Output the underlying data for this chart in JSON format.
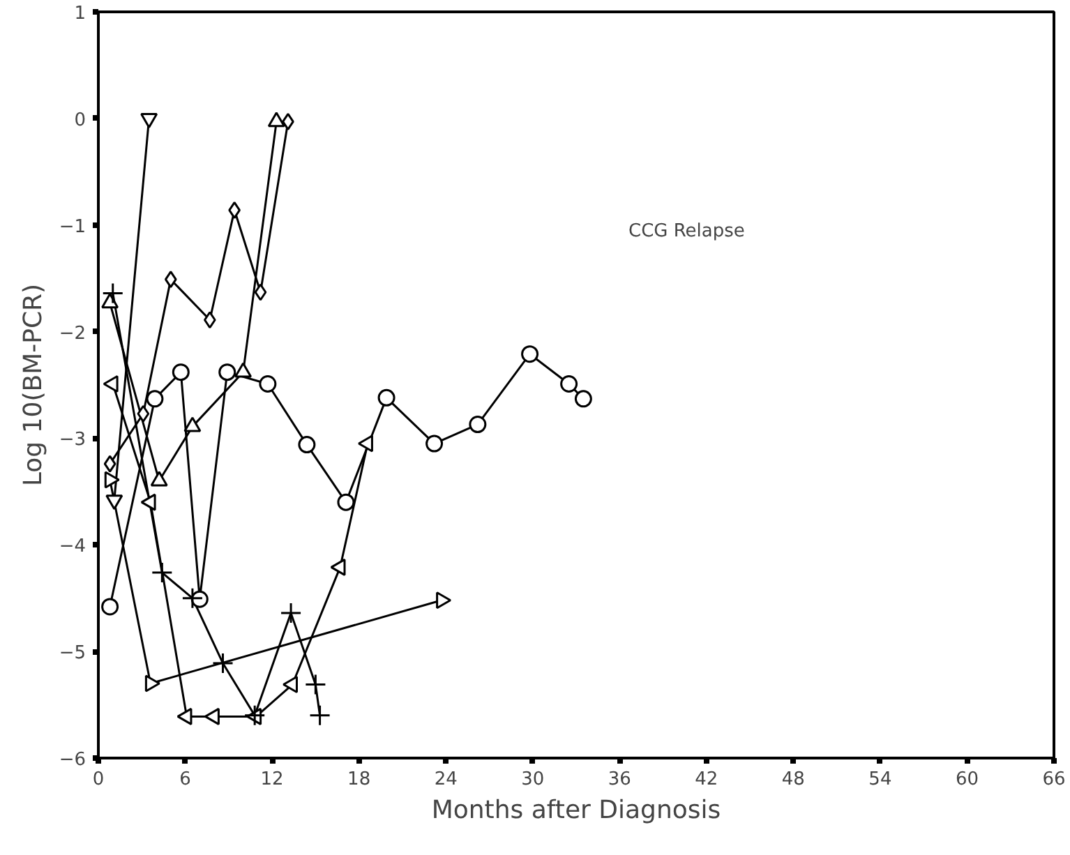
{
  "chart_data": {
    "type": "line",
    "xlabel": "Months after Diagnosis",
    "ylabel": "Log 10(BM-PCR)",
    "annotations": [
      "CCG Relapse"
    ],
    "xlim": [
      0,
      66
    ],
    "ylim": [
      -6,
      1
    ],
    "xticks": [
      0,
      6,
      12,
      18,
      24,
      30,
      36,
      42,
      48,
      54,
      60,
      66
    ],
    "yticks": [
      -6,
      -5,
      -4,
      -3,
      -2,
      -1,
      0,
      1
    ],
    "series": [
      {
        "color": "#000000",
        "marker": "circle",
        "x": [
          0.8,
          3.9,
          5.7,
          7.0,
          8.9,
          11.7,
          14.4,
          17.1,
          19.9,
          23.2,
          26.2,
          29.8,
          32.5,
          33.5
        ],
        "values": [
          -4.58,
          -2.63,
          -2.38,
          -4.51,
          -2.38,
          -2.49,
          -3.06,
          -3.6,
          -2.62,
          -3.05,
          -2.87,
          -2.21,
          -2.49,
          -2.63
        ]
      },
      {
        "color": "#000000",
        "marker": "diamond",
        "x": [
          0.8,
          3.1,
          5.0,
          7.7,
          9.4,
          11.2,
          13.1
        ],
        "values": [
          -3.24,
          -2.77,
          -1.51,
          -1.89,
          -0.86,
          -1.63,
          -0.03
        ]
      },
      {
        "color": "#000000",
        "marker": "triangle",
        "x": [
          0.8,
          4.2,
          6.5,
          10.0,
          12.3
        ],
        "values": [
          -1.73,
          -3.4,
          -2.89,
          -2.38,
          -0.03
        ]
      },
      {
        "color": "#000000",
        "marker": "cross",
        "x": [
          1.0,
          4.4,
          6.5,
          8.6,
          10.8,
          13.3,
          15.0,
          15.3
        ],
        "values": [
          -1.64,
          -4.26,
          -4.5,
          -5.11,
          -5.6,
          -4.64,
          -5.31,
          -5.6
        ]
      },
      {
        "color": "#000000",
        "marker": "triangle_left",
        "x": [
          1.0,
          3.6,
          6.1,
          8.0,
          10.9,
          13.4,
          16.7,
          18.6
        ],
        "values": [
          -2.49,
          -3.6,
          -5.61,
          -5.61,
          -5.61,
          -5.31,
          -4.21,
          -3.05
        ]
      },
      {
        "color": "#000000",
        "marker": "triangle_right",
        "x": [
          0.8,
          3.6,
          23.7
        ],
        "values": [
          -3.39,
          -5.3,
          -4.52
        ]
      },
      {
        "color": "#000000",
        "marker": "triangle_down",
        "x": [
          1.1,
          3.5
        ],
        "values": [
          -3.58,
          0
        ]
      }
    ]
  }
}
